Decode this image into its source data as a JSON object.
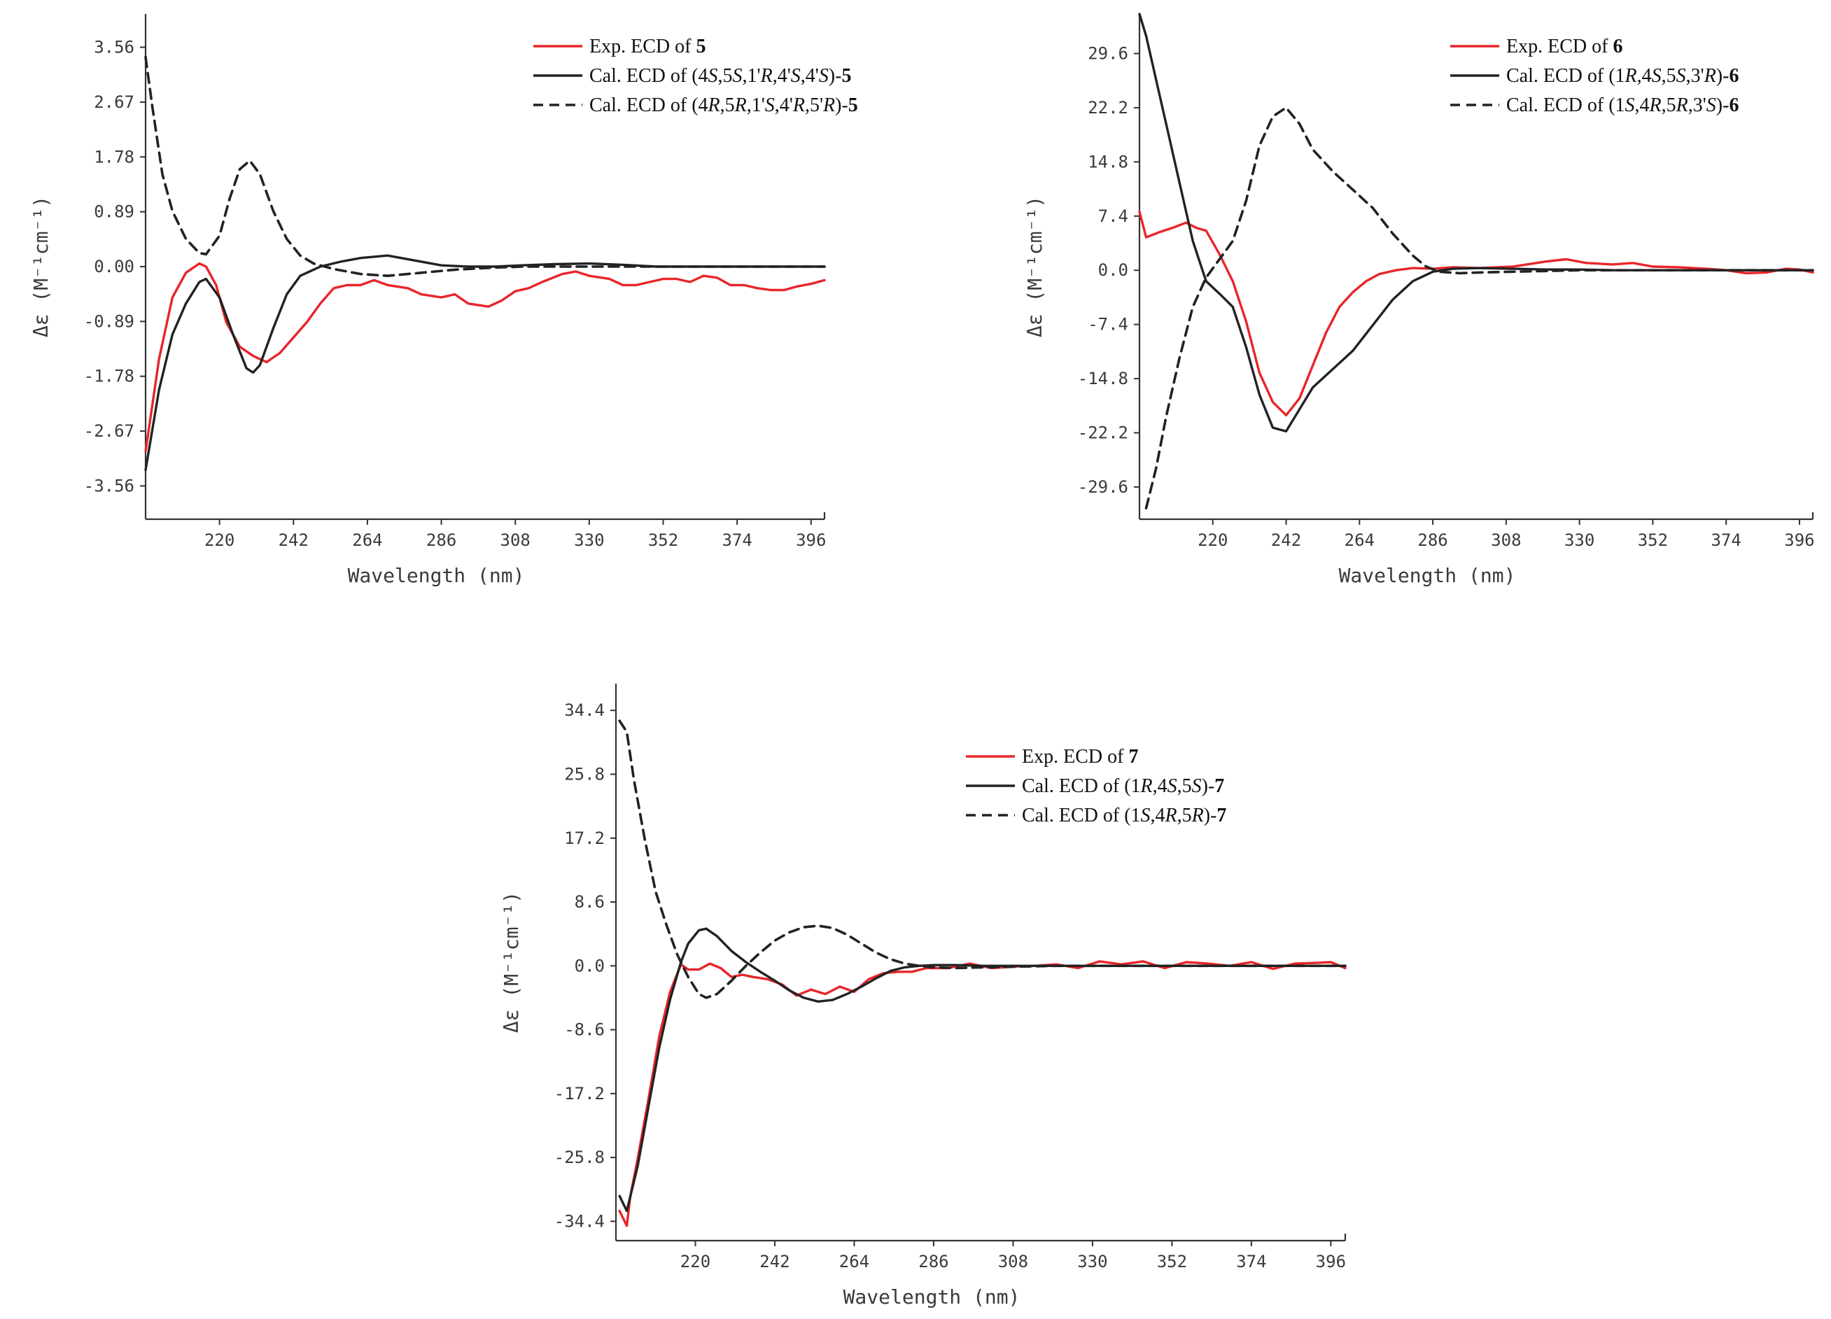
{
  "chart_data": [
    {
      "type": "line",
      "id": "ecd-5",
      "xlabel": "Wavelength (nm)",
      "ylabel": "Δε (M⁻¹cm⁻¹)",
      "xlim": [
        198,
        400
      ],
      "ylim": [
        -4.1,
        4.1
      ],
      "xticks": [
        220,
        242,
        264,
        286,
        308,
        330,
        352,
        374,
        396
      ],
      "yticks": [
        3.56,
        2.67,
        1.78,
        0.89,
        0.0,
        -0.89,
        -1.78,
        -2.67,
        -3.56
      ],
      "ytick_labels": [
        "3.56",
        "2.67",
        "1.78",
        "0.89",
        "0.00",
        "-0.89",
        "-1.78",
        "-2.67",
        "-3.56"
      ],
      "legend_position": "top-right",
      "series": [
        {
          "name": "Exp. ECD of 5",
          "legend": [
            "Exp. ECD of ",
            "5"
          ],
          "color": "#e8252a",
          "dash": "solid",
          "x": [
            198,
            202,
            206,
            210,
            214,
            216,
            219,
            222,
            226,
            230,
            234,
            238,
            242,
            246,
            250,
            254,
            258,
            262,
            266,
            270,
            276,
            280,
            286,
            290,
            294,
            300,
            304,
            308,
            312,
            316,
            322,
            326,
            330,
            336,
            340,
            344,
            348,
            352,
            356,
            360,
            364,
            368,
            372,
            376,
            380,
            384,
            388,
            392,
            396,
            400
          ],
          "y": [
            -3.0,
            -1.5,
            -0.5,
            -0.1,
            0.05,
            0.0,
            -0.3,
            -0.9,
            -1.3,
            -1.45,
            -1.55,
            -1.4,
            -1.15,
            -0.9,
            -0.6,
            -0.35,
            -0.3,
            -0.3,
            -0.22,
            -0.3,
            -0.35,
            -0.45,
            -0.5,
            -0.45,
            -0.6,
            -0.65,
            -0.55,
            -0.4,
            -0.35,
            -0.25,
            -0.12,
            -0.08,
            -0.15,
            -0.2,
            -0.3,
            -0.3,
            -0.25,
            -0.2,
            -0.2,
            -0.25,
            -0.15,
            -0.18,
            -0.3,
            -0.3,
            -0.35,
            -0.38,
            -0.38,
            -0.32,
            -0.28,
            -0.22
          ]
        },
        {
          "name": "Cal. ECD of (4S,5S,1'R,4'S,4'S)-5",
          "legend": [
            "Cal. ECD of (4",
            "S",
            ",5",
            "S",
            ",1'",
            "R",
            ",4'",
            "S",
            ",4'",
            "S",
            ")-",
            "5"
          ],
          "color": "#222222",
          "dash": "solid",
          "x": [
            198,
            202,
            206,
            210,
            214,
            216,
            220,
            224,
            228,
            230,
            232,
            236,
            240,
            244,
            250,
            256,
            262,
            270,
            278,
            286,
            294,
            302,
            310,
            320,
            330,
            340,
            350,
            360,
            370,
            380,
            390,
            400
          ],
          "y": [
            -3.3,
            -2.0,
            -1.1,
            -0.6,
            -0.25,
            -0.2,
            -0.5,
            -1.1,
            -1.65,
            -1.72,
            -1.6,
            -1.0,
            -0.45,
            -0.15,
            0.0,
            0.08,
            0.14,
            0.18,
            0.1,
            0.02,
            0.0,
            0.0,
            0.02,
            0.04,
            0.05,
            0.03,
            0.0,
            0.0,
            0.0,
            0.0,
            0.0,
            0.0
          ]
        },
        {
          "name": "Cal. ECD of (4R,5R,1'S,4'R,5'R)-5",
          "legend": [
            "Cal. ECD of (4",
            "R",
            ",5",
            "R",
            ",1'",
            "S",
            ",4'",
            "R",
            ",5'",
            "R",
            ")-",
            "5"
          ],
          "color": "#222222",
          "dash": "dashed",
          "x": [
            198,
            200,
            203,
            206,
            210,
            214,
            216,
            220,
            223,
            226,
            229,
            232,
            236,
            240,
            244,
            248,
            254,
            262,
            270,
            280,
            290,
            300,
            310,
            320,
            330,
            340,
            350,
            360,
            370,
            380,
            390,
            400
          ],
          "y": [
            3.4,
            2.6,
            1.5,
            0.9,
            0.45,
            0.22,
            0.2,
            0.5,
            1.1,
            1.58,
            1.72,
            1.5,
            0.9,
            0.45,
            0.18,
            0.05,
            -0.04,
            -0.12,
            -0.15,
            -0.1,
            -0.05,
            -0.02,
            0.0,
            0.0,
            0.0,
            0.0,
            0.0,
            0.0,
            0.0,
            0.0,
            0.0,
            0.0
          ]
        }
      ]
    },
    {
      "type": "line",
      "id": "ecd-6",
      "xlabel": "Wavelength (nm)",
      "ylabel": "Δε (M⁻¹cm⁻¹)",
      "xlim": [
        198,
        400
      ],
      "ylim": [
        -34,
        35
      ],
      "xticks": [
        220,
        242,
        264,
        286,
        308,
        330,
        352,
        374,
        396
      ],
      "yticks": [
        29.6,
        22.2,
        14.8,
        7.4,
        0.0,
        -7.4,
        -14.8,
        -22.2,
        -29.6
      ],
      "ytick_labels": [
        "29.6",
        "22.2",
        "14.8",
        "7.4",
        "0.0",
        "-7.4",
        "-14.8",
        "-22.2",
        "-29.6"
      ],
      "legend_position": "top-right",
      "series": [
        {
          "name": "Exp. ECD of 6",
          "legend": [
            "Exp. ECD of ",
            "6"
          ],
          "color": "#e8252a",
          "dash": "solid",
          "x": [
            198,
            200,
            204,
            208,
            212,
            215,
            218,
            222,
            226,
            230,
            234,
            238,
            242,
            246,
            250,
            254,
            258,
            262,
            266,
            270,
            275,
            280,
            286,
            292,
            300,
            310,
            320,
            326,
            332,
            340,
            346,
            352,
            360,
            368,
            374,
            380,
            386,
            392,
            396,
            400
          ],
          "y": [
            8.0,
            4.5,
            5.2,
            5.8,
            6.5,
            5.8,
            5.4,
            2.2,
            -1.5,
            -7.0,
            -14.0,
            -18.0,
            -19.8,
            -17.5,
            -13.0,
            -8.5,
            -5.0,
            -3.0,
            -1.5,
            -0.5,
            0.0,
            0.3,
            0.2,
            0.4,
            0.3,
            0.5,
            1.2,
            1.5,
            1.0,
            0.8,
            1.0,
            0.5,
            0.4,
            0.2,
            0.0,
            -0.4,
            -0.3,
            0.2,
            0.1,
            -0.3
          ]
        },
        {
          "name": "Cal. ECD of (1R,4S,5S,3'R)-6",
          "legend": [
            "Cal. ECD of (1",
            "R",
            ",4",
            "S",
            ",5",
            "S",
            ",3'",
            "R",
            ")-",
            "6"
          ],
          "color": "#222222",
          "dash": "solid",
          "x": [
            198,
            200,
            203,
            206,
            210,
            214,
            218,
            222,
            226,
            230,
            234,
            238,
            242,
            246,
            250,
            256,
            262,
            268,
            274,
            280,
            286,
            292,
            300,
            310,
            320,
            330,
            340,
            350,
            360,
            370,
            380,
            390,
            400
          ],
          "y": [
            35.0,
            32.0,
            26.0,
            20.0,
            12.0,
            4.0,
            -1.5,
            -3.2,
            -5.0,
            -10.5,
            -17.0,
            -21.5,
            -22.0,
            -19.0,
            -16.0,
            -13.5,
            -11.0,
            -7.5,
            -4.0,
            -1.5,
            -0.2,
            0.2,
            0.3,
            0.2,
            0.1,
            0.1,
            0.0,
            0.0,
            0.0,
            0.0,
            0.0,
            0.0,
            0.0
          ]
        },
        {
          "name": "Cal. ECD of (1S,4R,5R,3'S)-6",
          "legend": [
            "Cal. ECD of (1",
            "S",
            ",4",
            "R",
            ",5",
            "R",
            ",3'",
            "S",
            ")-",
            "6"
          ],
          "color": "#222222",
          "dash": "dashed",
          "x": [
            200,
            203,
            206,
            210,
            214,
            218,
            222,
            226,
            230,
            234,
            238,
            242,
            246,
            250,
            256,
            262,
            268,
            274,
            280,
            284,
            288,
            294,
            300,
            310,
            320,
            330,
            340,
            350,
            360,
            370,
            380,
            390,
            400
          ],
          "y": [
            -32.5,
            -27.0,
            -20.0,
            -12.0,
            -5.0,
            -1.0,
            1.5,
            4.0,
            9.5,
            17.0,
            21.0,
            22.2,
            20.0,
            16.5,
            13.5,
            11.0,
            8.5,
            5.0,
            2.0,
            0.5,
            -0.2,
            -0.4,
            -0.3,
            -0.2,
            -0.1,
            0.0,
            0.0,
            0.0,
            0.0,
            0.0,
            0.0,
            0.0,
            0.0
          ]
        }
      ]
    },
    {
      "type": "line",
      "id": "ecd-7",
      "xlabel": "Wavelength (nm)",
      "ylabel": "Δε (M⁻¹cm⁻¹)",
      "xlim": [
        198,
        400
      ],
      "ylim": [
        -37,
        38
      ],
      "xticks": [
        220,
        242,
        264,
        286,
        308,
        330,
        352,
        374,
        396
      ],
      "yticks": [
        34.4,
        25.8,
        17.2,
        8.6,
        0.0,
        -8.6,
        -17.2,
        -25.8,
        -34.4
      ],
      "ytick_labels": [
        "34.4",
        "25.8",
        "17.2",
        "8.6",
        "0.0",
        "-8.6",
        "-17.2",
        "-25.8",
        "-34.4"
      ],
      "legend_position": "top-right",
      "series": [
        {
          "name": "Exp. ECD of 7",
          "legend": [
            "Exp. ECD of ",
            "7"
          ],
          "color": "#e8252a",
          "dash": "solid",
          "x": [
            199,
            201,
            202,
            204,
            207,
            210,
            213,
            216,
            218,
            221,
            224,
            227,
            230,
            233,
            236,
            240,
            244,
            248,
            252,
            256,
            260,
            264,
            268,
            272,
            276,
            280,
            284,
            290,
            296,
            302,
            308,
            314,
            320,
            326,
            332,
            338,
            344,
            350,
            356,
            362,
            368,
            374,
            380,
            386,
            392,
            396,
            400
          ],
          "y": [
            -33.0,
            -35.0,
            -31.0,
            -26.0,
            -18.0,
            -9.5,
            -3.5,
            0.2,
            -0.5,
            -0.5,
            0.3,
            -0.3,
            -1.5,
            -1.2,
            -1.5,
            -1.8,
            -2.5,
            -4.0,
            -3.2,
            -3.8,
            -2.8,
            -3.5,
            -1.8,
            -1.0,
            -0.8,
            -0.8,
            -0.3,
            -0.3,
            0.3,
            -0.3,
            -0.1,
            0.0,
            0.2,
            -0.3,
            0.6,
            0.2,
            0.6,
            -0.3,
            0.5,
            0.3,
            0.0,
            0.5,
            -0.4,
            0.3,
            0.4,
            0.5,
            -0.3
          ]
        },
        {
          "name": "Cal. ECD of (1R,4S,5S)-7",
          "legend": [
            "Cal. ECD of (1",
            "R",
            ",4",
            "S",
            ",5",
            "S",
            ")-",
            "7"
          ],
          "color": "#222222",
          "dash": "solid",
          "x": [
            199,
            201,
            204,
            207,
            210,
            213,
            216,
            218,
            221,
            223,
            226,
            230,
            234,
            238,
            242,
            246,
            250,
            254,
            258,
            262,
            266,
            270,
            274,
            278,
            282,
            286,
            292,
            300,
            310,
            320,
            330,
            340,
            350,
            360,
            370,
            380,
            390,
            400
          ],
          "y": [
            -31.0,
            -33.0,
            -27.0,
            -19.0,
            -11.0,
            -4.5,
            0.5,
            3.0,
            4.8,
            5.0,
            4.0,
            2.0,
            0.5,
            -0.8,
            -2.0,
            -3.3,
            -4.3,
            -4.8,
            -4.6,
            -3.8,
            -2.8,
            -1.7,
            -0.7,
            -0.2,
            0.0,
            0.1,
            0.1,
            0.0,
            0.0,
            0.0,
            0.0,
            0.0,
            0.0,
            0.0,
            0.0,
            0.0,
            0.0,
            0.0
          ]
        },
        {
          "name": "Cal. ECD of (1S,4R,5R)-7",
          "legend": [
            "Cal. ECD of (1",
            "S",
            ",4",
            "R",
            ",5",
            "R",
            ")-",
            "7"
          ],
          "color": "#222222",
          "dash": "dashed",
          "x": [
            199,
            201,
            203,
            206,
            209,
            212,
            215,
            218,
            221,
            223,
            226,
            230,
            234,
            238,
            242,
            246,
            250,
            254,
            258,
            262,
            266,
            270,
            274,
            278,
            282,
            286,
            292,
            300,
            310,
            320,
            330,
            340,
            350,
            360,
            370,
            380,
            390,
            400
          ],
          "y": [
            33.0,
            31.5,
            25.0,
            17.0,
            10.0,
            5.5,
            1.5,
            -1.5,
            -3.8,
            -4.3,
            -3.8,
            -2.0,
            0.0,
            1.8,
            3.4,
            4.5,
            5.2,
            5.4,
            5.1,
            4.2,
            3.0,
            1.8,
            0.9,
            0.3,
            0.0,
            -0.2,
            -0.3,
            -0.2,
            -0.1,
            0.0,
            0.0,
            0.0,
            0.0,
            0.0,
            0.0,
            0.0,
            0.0,
            0.0
          ]
        }
      ]
    }
  ]
}
